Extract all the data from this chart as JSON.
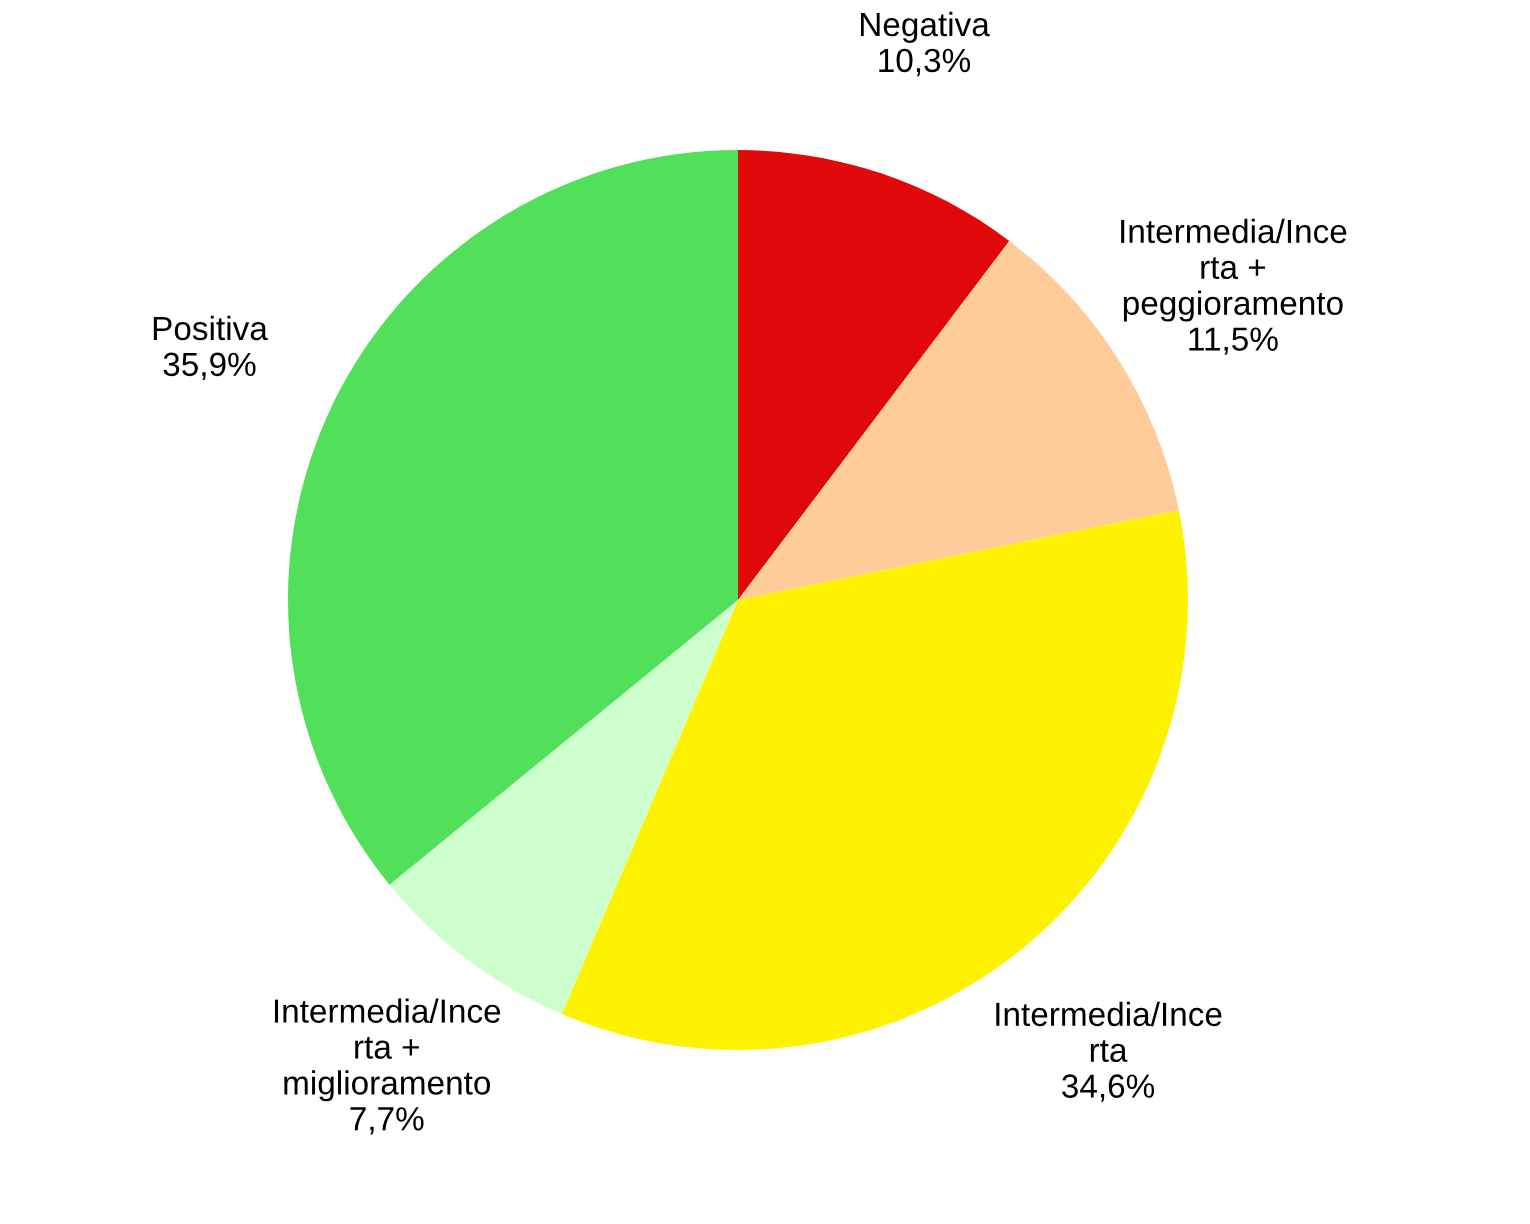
{
  "chart_data": {
    "type": "pie",
    "categories": [
      "Negativa",
      "Intermedia/Ince\nrta +\npeggioramento",
      "Intermedia/Ince\nrta",
      "Intermedia/Ince\nrta +\nmiglioramento",
      "Positiva"
    ],
    "values": [
      10.3,
      11.5,
      34.6,
      7.7,
      35.9
    ],
    "value_labels": [
      "10,3%",
      "11,5%",
      "34,6%",
      "7,7%",
      "35,9%"
    ],
    "colors": [
      "#e00808",
      "#ffcc99",
      "#fff200",
      "#ccffcc",
      "#52e05a"
    ]
  }
}
